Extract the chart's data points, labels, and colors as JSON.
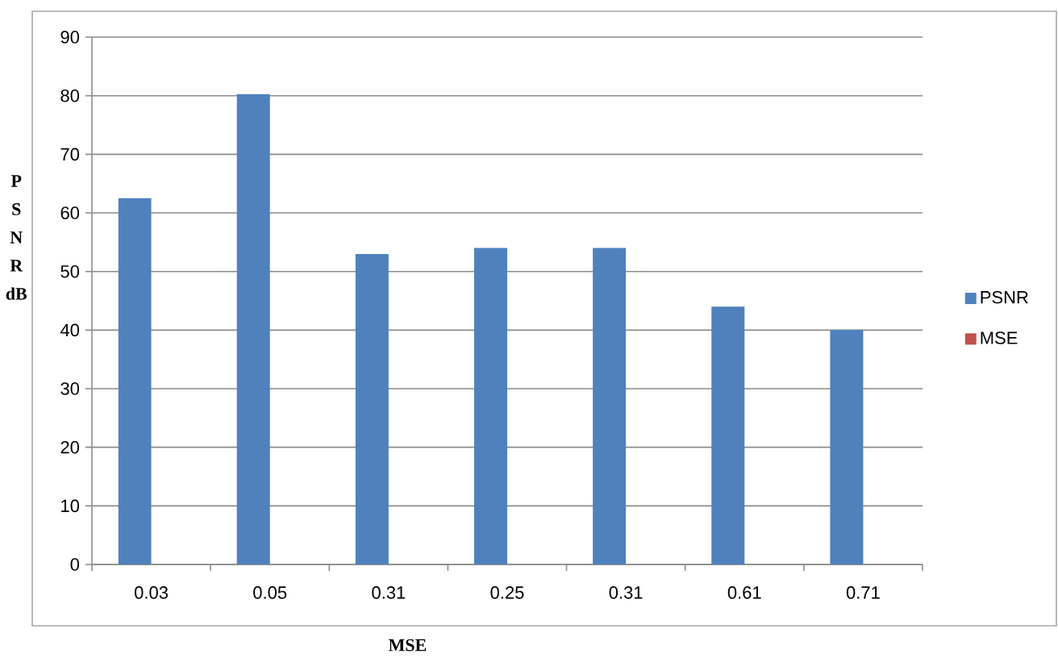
{
  "chart_data": {
    "type": "bar",
    "xlabel": "MSE",
    "ylabel": "P S N R dB",
    "categories": [
      "0.03",
      "0.05",
      "0.31",
      "0.25",
      "0.31",
      "0.61",
      "0.71"
    ],
    "series": [
      {
        "name": "PSNR",
        "color": "#4f81bd",
        "values": [
          62.5,
          80.3,
          53,
          54,
          54,
          44,
          40
        ]
      },
      {
        "name": "MSE",
        "color": "#c0504d",
        "values": [
          null,
          null,
          null,
          null,
          null,
          null,
          null
        ]
      }
    ],
    "ylim": [
      0,
      90
    ],
    "yticks": [
      0,
      10,
      20,
      30,
      40,
      50,
      60,
      70,
      80,
      90
    ],
    "grid": "y",
    "legend": "right"
  }
}
